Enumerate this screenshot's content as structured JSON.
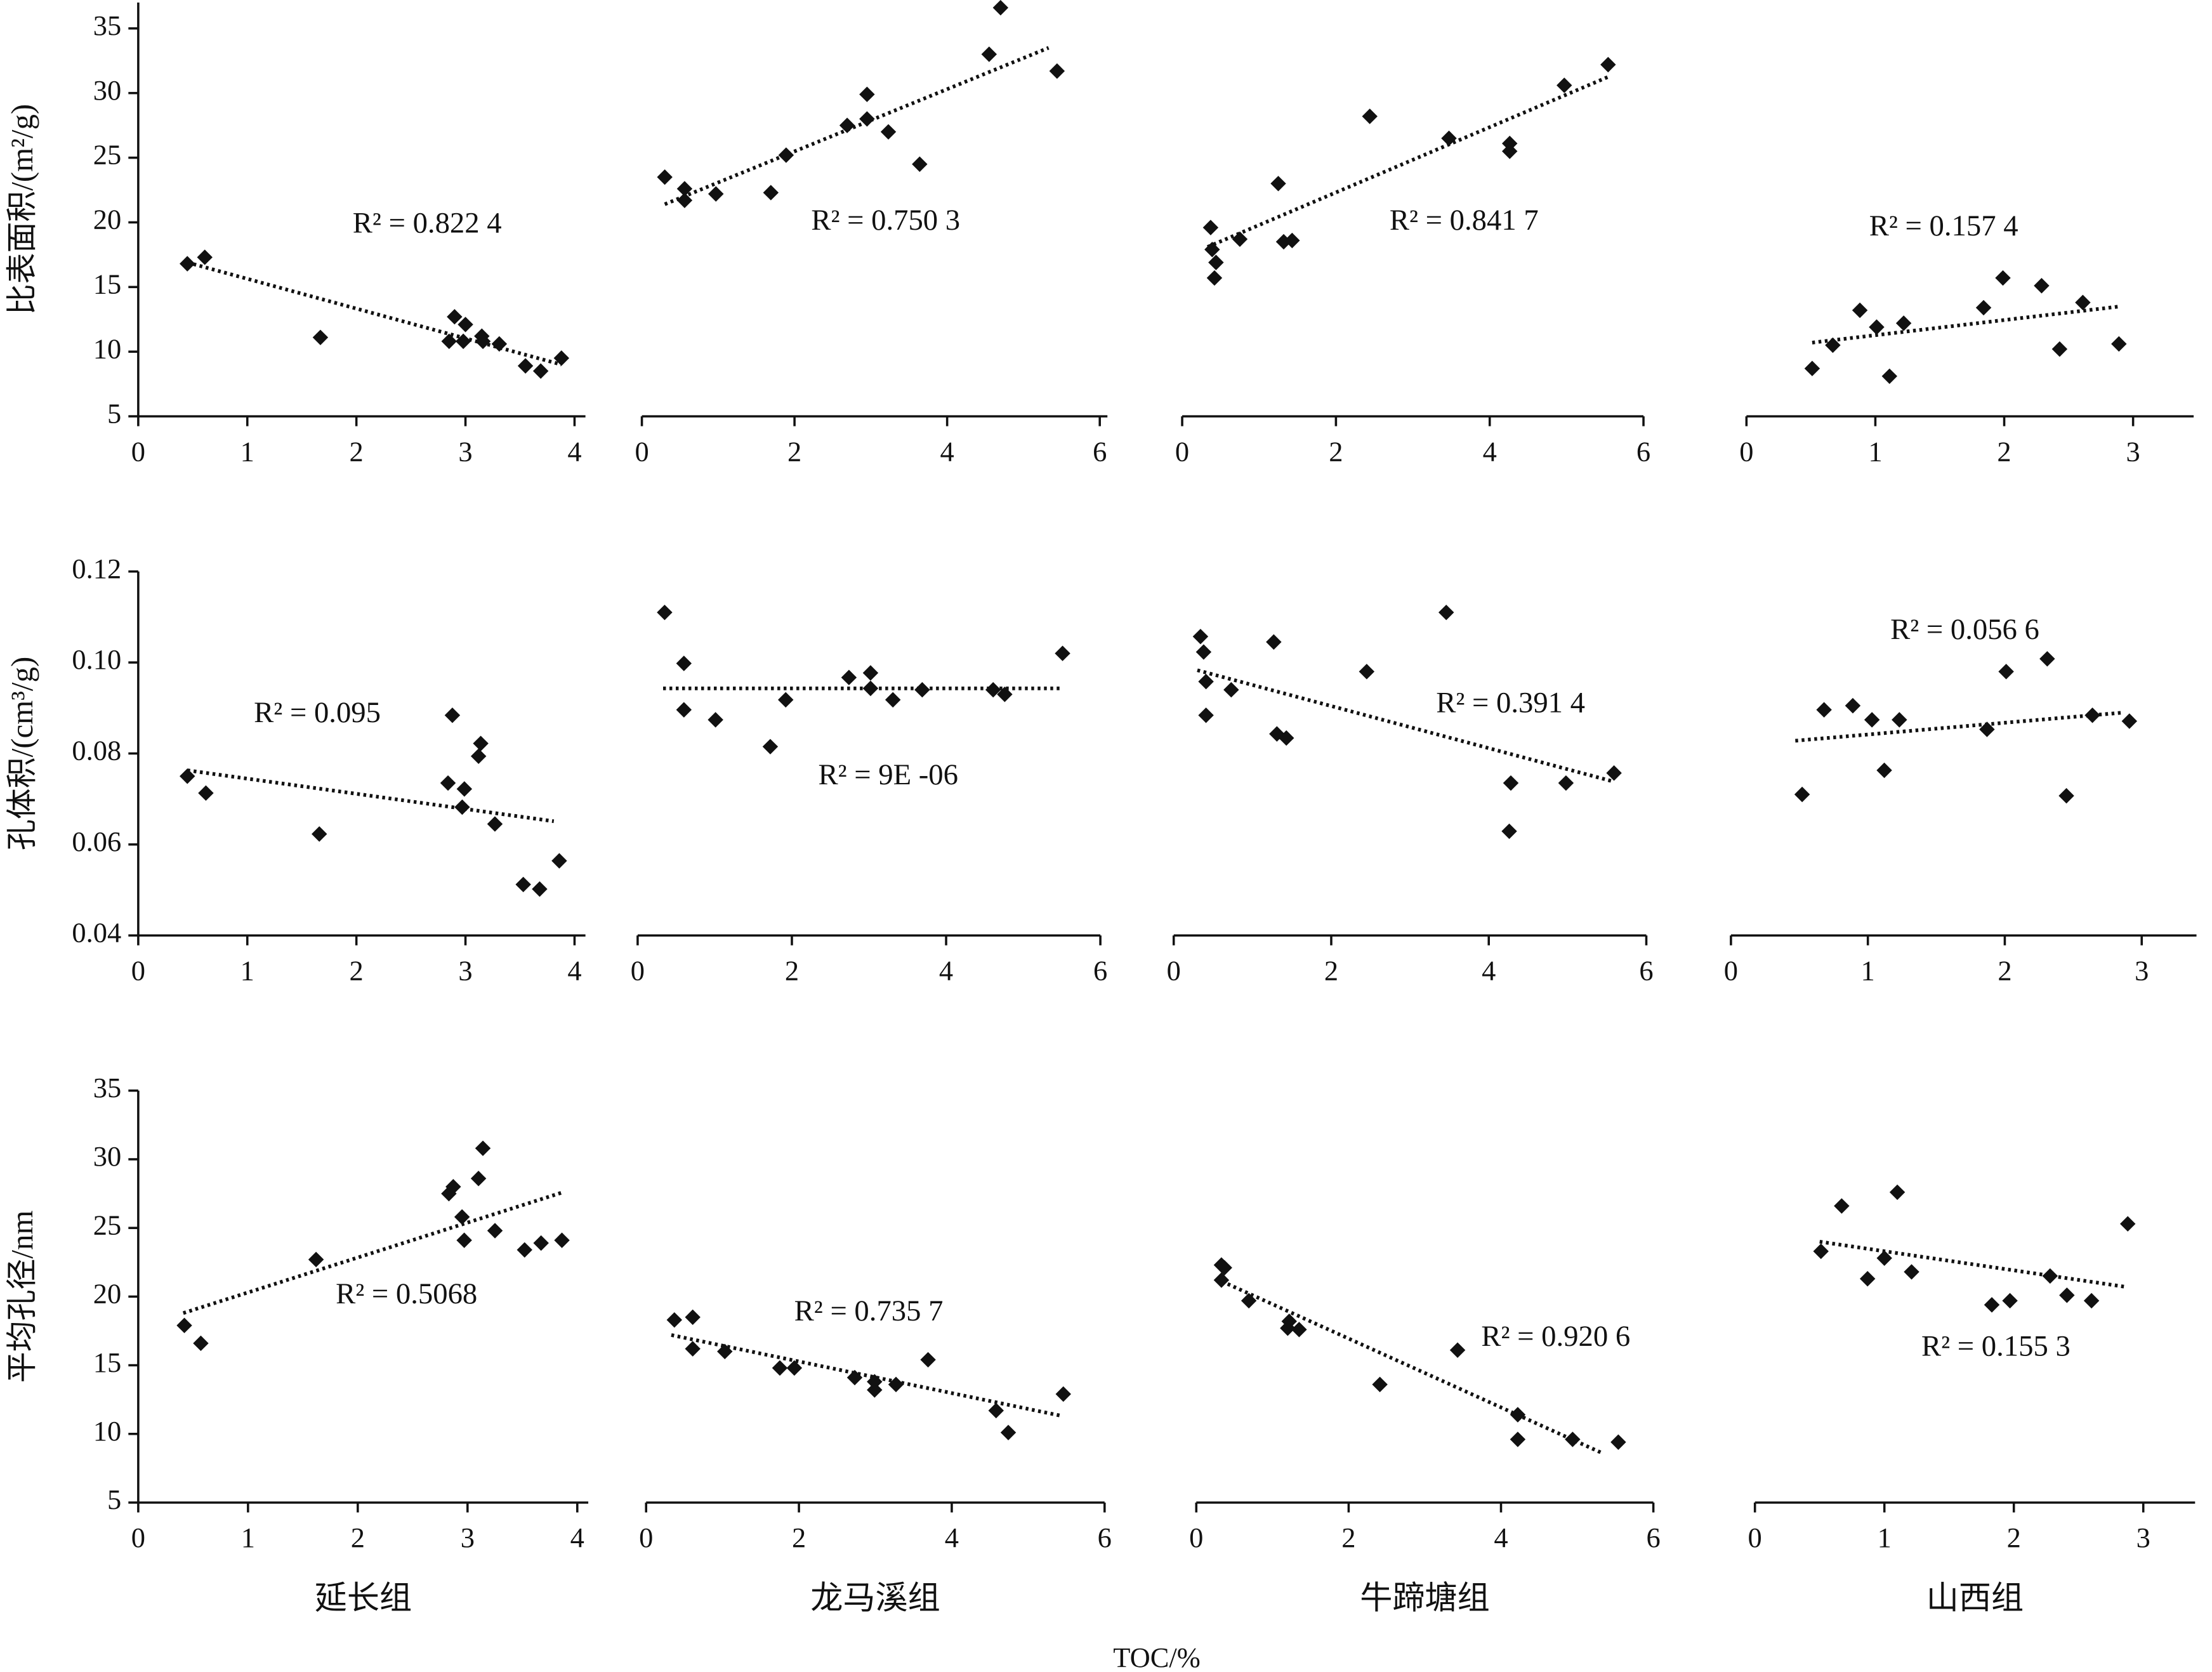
{
  "xlabel": "TOC/%",
  "chart_data": [
    {
      "type": "scatter",
      "ylabel": "比表面积/(m²/g)",
      "annotation": "R² = 0.822 4",
      "x": [
        0.45,
        0.61,
        1.67,
        2.9,
        2.85,
        3.0,
        2.98,
        3.15,
        3.16,
        3.31,
        3.55,
        3.69,
        3.88
      ],
      "y": [
        16.8,
        17.3,
        11.1,
        12.7,
        10.8,
        12.1,
        10.8,
        11.2,
        10.8,
        10.6,
        8.9,
        8.5,
        9.5
      ],
      "trend": {
        "x": [
          0.45,
          3.88
        ],
        "y": [
          16.9,
          9.0
        ]
      },
      "xlim": [
        0,
        4.1
      ],
      "xticks": [
        0,
        1,
        2,
        3,
        4
      ],
      "ylim": [
        5,
        37
      ],
      "yticks": [
        5,
        10,
        15,
        20,
        25,
        30,
        35
      ]
    },
    {
      "type": "scatter",
      "annotation": "R² = 0.750 3",
      "x": [
        0.3,
        0.56,
        0.56,
        0.97,
        1.69,
        1.89,
        2.69,
        2.95,
        2.95,
        3.23,
        3.64,
        4.55,
        4.7,
        5.44
      ],
      "y": [
        23.5,
        22.6,
        21.7,
        22.2,
        22.3,
        25.2,
        27.5,
        28.0,
        29.9,
        27.0,
        24.5,
        33.0,
        36.6,
        31.7
      ],
      "trend": {
        "x": [
          0.3,
          5.33
        ],
        "y": [
          21.4,
          33.5
        ]
      },
      "xlim": [
        0,
        6.1
      ],
      "xticks": [
        0,
        2,
        4,
        6
      ],
      "ylim": [
        5,
        37
      ]
    },
    {
      "type": "scatter",
      "annotation": "R² = 0.841 7",
      "x": [
        0.37,
        0.39,
        0.44,
        0.42,
        0.75,
        1.25,
        1.32,
        1.43,
        2.44,
        3.47,
        4.26,
        4.26,
        4.97,
        5.54
      ],
      "y": [
        19.6,
        17.9,
        16.9,
        15.7,
        18.7,
        23.0,
        18.5,
        18.6,
        28.2,
        26.5,
        26.1,
        25.5,
        30.6,
        32.2
      ],
      "trend": {
        "x": [
          0.33,
          5.56
        ],
        "y": [
          18.1,
          31.3
        ]
      },
      "xlim": [
        0,
        6
      ],
      "xticks": [
        0,
        2,
        4,
        6
      ],
      "ylim": [
        5,
        37
      ]
    },
    {
      "type": "scatter",
      "annotation": "R² = 0.157 4",
      "x": [
        0.51,
        0.67,
        0.88,
        1.01,
        1.11,
        1.22,
        1.84,
        1.99,
        2.29,
        2.43,
        2.61,
        2.89
      ],
      "y": [
        8.7,
        10.5,
        13.2,
        11.9,
        8.1,
        12.2,
        13.4,
        15.7,
        15.1,
        10.2,
        13.8,
        10.6
      ],
      "trend": {
        "x": [
          0.51,
          2.9
        ],
        "y": [
          10.7,
          13.5
        ]
      },
      "xlim": [
        0,
        3.47
      ],
      "xticks": [
        0,
        1,
        2,
        3
      ],
      "ylim": [
        5,
        37
      ]
    },
    {
      "type": "scatter",
      "ylabel": "孔体积/(cm³/g)",
      "annotation": "R² = 0.095",
      "x": [
        0.45,
        0.62,
        1.66,
        2.88,
        2.84,
        2.99,
        2.97,
        3.14,
        3.12,
        3.27,
        3.53,
        3.68,
        3.86
      ],
      "y": [
        0.075,
        0.0713,
        0.0623,
        0.0884,
        0.0735,
        0.0722,
        0.0682,
        0.0822,
        0.0794,
        0.0645,
        0.0512,
        0.0502,
        0.0564
      ],
      "trend": {
        "x": [
          0.45,
          3.81
        ],
        "y": [
          0.0763,
          0.0651
        ]
      },
      "xlim": [
        0,
        4.1
      ],
      "xticks": [
        0,
        1,
        2,
        3,
        4
      ],
      "ylim": [
        0.04,
        0.12
      ],
      "yticks": [
        0.04,
        0.06,
        0.08,
        {
          "value": 0.1,
          "label": "0.10"
        },
        0.12
      ]
    },
    {
      "type": "scatter",
      "annotation": "R² = 9E -06",
      "x": [
        0.35,
        0.6,
        0.6,
        1.01,
        1.72,
        1.92,
        2.74,
        3.02,
        3.02,
        3.31,
        3.69,
        4.61,
        4.76,
        5.51
      ],
      "y": [
        0.111,
        0.0998,
        0.0896,
        0.0874,
        0.0815,
        0.0918,
        0.0967,
        0.0977,
        0.0943,
        0.0918,
        0.094,
        0.094,
        0.093,
        0.102
      ],
      "trend": {
        "x": [
          0.33,
          5.51
        ],
        "y": [
          0.0943,
          0.0943
        ]
      },
      "xlim": [
        0,
        6
      ],
      "xticks": [
        0,
        2,
        4,
        6
      ],
      "ylim": [
        0.04,
        0.12
      ]
    },
    {
      "type": "scatter",
      "annotation": "R² = 0.391 4",
      "x": [
        0.34,
        0.38,
        0.41,
        0.41,
        0.73,
        1.27,
        1.31,
        1.43,
        2.45,
        3.46,
        4.28,
        4.26,
        4.98,
        5.59
      ],
      "y": [
        0.1057,
        0.1023,
        0.0958,
        0.0884,
        0.094,
        0.1045,
        0.0843,
        0.0834,
        0.098,
        0.111,
        0.0735,
        0.0629,
        0.0735,
        0.0757
      ],
      "trend": {
        "x": [
          0.3,
          5.59
        ],
        "y": [
          0.0983,
          0.0738
        ]
      },
      "xlim": [
        0,
        6
      ],
      "xticks": [
        0,
        2,
        4,
        6
      ],
      "ylim": [
        0.04,
        0.12
      ]
    },
    {
      "type": "scatter",
      "annotation": "R² = 0.056 6",
      "x": [
        0.52,
        0.68,
        0.89,
        1.03,
        1.12,
        1.23,
        1.87,
        2.01,
        2.31,
        2.45,
        2.64,
        2.91
      ],
      "y": [
        0.071,
        0.0896,
        0.0905,
        0.0874,
        0.0763,
        0.0874,
        0.0853,
        0.098,
        0.1008,
        0.0707,
        0.0884,
        0.0871
      ],
      "trend": {
        "x": [
          0.47,
          2.87
        ],
        "y": [
          0.0828,
          0.089
        ]
      },
      "xlim": [
        0,
        3.4
      ],
      "xticks": [
        0,
        1,
        2,
        3
      ],
      "ylim": [
        0.04,
        0.12
      ]
    },
    {
      "type": "scatter",
      "ylabel": "平均孔径/nm",
      "xlabel": "延长组",
      "annotation": "R² = 0.5068",
      "x": [
        0.42,
        0.57,
        1.62,
        2.83,
        2.87,
        2.95,
        2.97,
        3.1,
        3.14,
        3.25,
        3.52,
        3.67,
        3.86
      ],
      "y": [
        17.9,
        16.6,
        22.7,
        27.5,
        28.0,
        25.8,
        24.1,
        28.6,
        30.8,
        24.8,
        23.4,
        23.9,
        24.1
      ],
      "trend": {
        "x": [
          0.41,
          3.87
        ],
        "y": [
          18.8,
          27.6
        ]
      },
      "xlim": [
        0,
        4.1
      ],
      "xticks": [
        0,
        1,
        2,
        3,
        4
      ],
      "ylim": [
        5,
        35
      ],
      "yticks": [
        5,
        10,
        15,
        20,
        25,
        30,
        35
      ]
    },
    {
      "type": "scatter",
      "xlabel": "龙马溪组",
      "annotation": "R² = 0.735 7",
      "x": [
        0.37,
        0.61,
        0.61,
        1.03,
        1.75,
        1.94,
        2.73,
        2.99,
        2.99,
        3.27,
        3.69,
        4.58,
        4.74,
        5.46
      ],
      "y": [
        18.3,
        18.5,
        16.2,
        16.0,
        14.8,
        14.8,
        14.1,
        13.2,
        13.8,
        13.6,
        15.4,
        11.7,
        10.1,
        12.9
      ],
      "trend": {
        "x": [
          0.33,
          5.45
        ],
        "y": [
          17.2,
          11.3
        ]
      },
      "xlim": [
        0,
        6
      ],
      "xticks": [
        0,
        2,
        4,
        6
      ],
      "ylim": [
        5,
        35
      ]
    },
    {
      "type": "scatter",
      "xlabel": "牛蹄塘组",
      "annotation": "R² = 0.920 6",
      "x": [
        0.33,
        0.37,
        0.33,
        0.69,
        1.2,
        1.22,
        1.35,
        2.41,
        3.43,
        4.22,
        4.22,
        4.94,
        5.54
      ],
      "y": [
        22.3,
        22.1,
        21.2,
        19.7,
        17.7,
        18.2,
        17.6,
        13.6,
        16.1,
        11.4,
        9.6,
        9.6,
        9.4
      ],
      "trend": {
        "x": [
          0.26,
          5.33
        ],
        "y": [
          21.3,
          8.6
        ]
      },
      "xlim": [
        0,
        6
      ],
      "xticks": [
        0,
        2,
        4,
        6
      ],
      "ylim": [
        5,
        35
      ]
    },
    {
      "type": "scatter",
      "xlabel": "山西组",
      "annotation": "R² = 0.155 3",
      "x": [
        0.51,
        0.67,
        0.87,
        1.0,
        1.1,
        1.21,
        1.83,
        1.97,
        2.28,
        2.41,
        2.6,
        2.88
      ],
      "y": [
        23.3,
        26.6,
        21.3,
        22.8,
        27.6,
        21.8,
        19.4,
        19.7,
        21.5,
        20.1,
        19.7,
        25.3
      ],
      "trend": {
        "x": [
          0.5,
          2.87
        ],
        "y": [
          24.0,
          20.7
        ]
      },
      "xlim": [
        0,
        3.4
      ],
      "xticks": [
        0,
        1,
        2,
        3
      ],
      "ylim": [
        5,
        35
      ]
    }
  ]
}
